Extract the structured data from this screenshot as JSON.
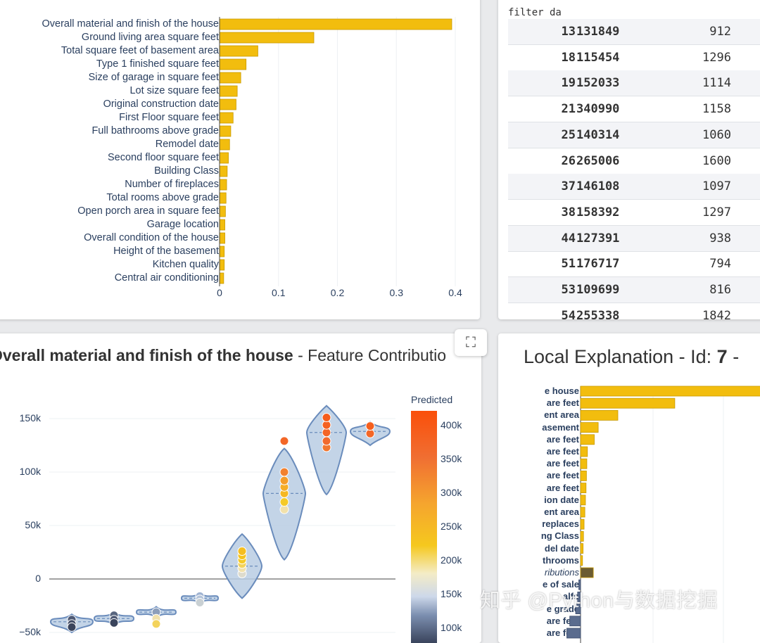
{
  "importance_panel": {
    "chart_data": {
      "type": "bar",
      "orientation": "horizontal",
      "categories": [
        "Overall material and finish of the house",
        "Ground living area square feet",
        "Total square feet of basement area",
        "Type 1 finished square feet",
        "Size of garage in square feet",
        "Lot size square feet",
        "Original construction date",
        "First Floor square feet",
        "Full bathrooms above grade",
        "Remodel date",
        "Second floor square feet",
        "Building Class",
        "Number of fireplaces",
        "Total rooms above grade",
        "Open porch area in square feet",
        "Garage location",
        "Overall condition of the house",
        "Height of the basement",
        "Kitchen quality",
        "Central air conditioning"
      ],
      "values": [
        0.394,
        0.16,
        0.065,
        0.045,
        0.036,
        0.03,
        0.028,
        0.023,
        0.019,
        0.017,
        0.015,
        0.013,
        0.012,
        0.011,
        0.01,
        0.009,
        0.009,
        0.008,
        0.008,
        0.007
      ],
      "xticks": [
        "0",
        "0.1",
        "0.2",
        "0.3",
        "0.4"
      ],
      "xlim": [
        0,
        0.4
      ],
      "bar_color": "#f2bd0e"
    }
  },
  "table_panel": {
    "filter_label": "filter da",
    "rows": [
      {
        "id": "13",
        "price": "131849",
        "area": "912"
      },
      {
        "id": "18",
        "price": "115454",
        "area": "1296"
      },
      {
        "id": "19",
        "price": "152033",
        "area": "1114"
      },
      {
        "id": "21",
        "price": "340990",
        "area": "1158"
      },
      {
        "id": "25",
        "price": "140314",
        "area": "1060"
      },
      {
        "id": "26",
        "price": "265006",
        "area": "1600"
      },
      {
        "id": "37",
        "price": "146108",
        "area": "1097"
      },
      {
        "id": "38",
        "price": "158392",
        "area": "1297"
      },
      {
        "id": "44",
        "price": "127391",
        "area": "938"
      },
      {
        "id": "51",
        "price": "176717",
        "area": "794"
      },
      {
        "id": "53",
        "price": "109699",
        "area": "816"
      },
      {
        "id": "54",
        "price": "255338",
        "area": "1842"
      }
    ]
  },
  "violin_panel": {
    "title_bold": "Overall material and finish of the house",
    "title_rest": " - Feature Contributio",
    "expand_icon": "⛶",
    "y_ticks": [
      "150k",
      "100k",
      "50k",
      "0",
      "−50k"
    ],
    "colorbar": {
      "title": "Predicted",
      "ticks": [
        "400k",
        "350k",
        "300k",
        "250k",
        "200k",
        "150k",
        "100k"
      ]
    },
    "chart_data": {
      "type": "violin",
      "groups": [
        {
          "center": -40000,
          "points": [
            -38000,
            -42000,
            -45000
          ]
        },
        {
          "center": -37000,
          "points": [
            -34000,
            -38000,
            -41000
          ]
        },
        {
          "center": -31000,
          "points": [
            -31000,
            -37000,
            -42000
          ]
        },
        {
          "center": -18000,
          "points": [
            -16000,
            -19000,
            -22000
          ]
        },
        {
          "center": 12000,
          "points": [
            5000,
            10000,
            14000,
            18000,
            22000,
            26000
          ]
        },
        {
          "center": 80000,
          "points": [
            65000,
            72000,
            80000,
            86000,
            92000,
            100000,
            129000
          ]
        },
        {
          "center": 137000,
          "points": [
            123000,
            129000,
            137000,
            144000,
            151000
          ]
        },
        {
          "center": 138000,
          "points": [
            136000,
            143000
          ]
        }
      ],
      "ylim": [
        -55000,
        160000
      ],
      "colorbar_range": [
        100000,
        420000
      ]
    }
  },
  "local_panel": {
    "title_prefix": "Local Explanation - Id: ",
    "title_id": "7",
    "title_suffix": " -",
    "labels": [
      "e house",
      "are feet",
      "ent area",
      "asement",
      "are feet",
      "are feet",
      "are feet",
      "are feet",
      "are feet",
      "ion date",
      "ent area",
      "replaces",
      "ng Class",
      "del date",
      "throoms",
      "ributions",
      "e of sale",
      "alfo",
      "e grade",
      "are feet",
      "are feet"
    ],
    "chart_data": {
      "type": "bar",
      "orientation": "horizontal",
      "values": [
        95000,
        48000,
        19000,
        9000,
        7000,
        3500,
        3200,
        3000,
        2800,
        2500,
        2200,
        1800,
        1500,
        1300,
        1000,
        6500,
        -900,
        -1500,
        -2500,
        -5500,
        -7000
      ],
      "colors": [
        "#f2bd0e",
        "#f2bd0e",
        "#f2bd0e",
        "#f2bd0e",
        "#f2bd0e",
        "#f2bd0e",
        "#f2bd0e",
        "#f2bd0e",
        "#f2bd0e",
        "#f2bd0e",
        "#f2bd0e",
        "#f2bd0e",
        "#f2bd0e",
        "#f2bd0e",
        "#f2bd0e",
        "#6b5c33",
        "#5a6c8e",
        "#5a6c8e",
        "#5a6c8e",
        "#5a6c8e",
        "#5a6c8e"
      ]
    }
  },
  "watermark": "知乎 @Python与数据挖掘"
}
